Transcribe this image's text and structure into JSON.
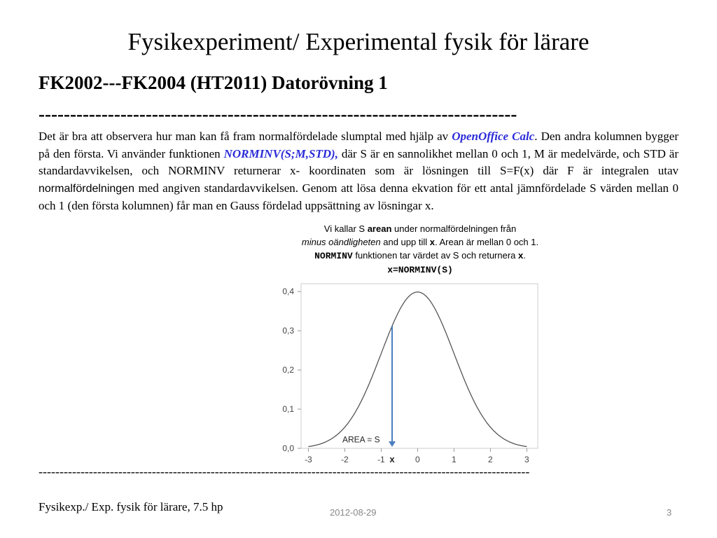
{
  "slide": {
    "title": "Fysikexperiment/ Experimental fysik för lärare",
    "heading": "FK2002---FK2004 (HT2011) Datorövning 1",
    "rule_top": "----------------------------------------------------------------------------",
    "rule_bottom": "---------------------------------------------------------------------------------------------------------------------"
  },
  "body": {
    "p1": "Det är bra att observera hur man kan få fram normalfördelade slumptal med hjälp av ",
    "app_name": "OpenOffice Calc",
    "p2": ". Den andra kolumnen bygger på den första. Vi använder funktionen ",
    "function_name": "NORMINV(S;M,STD),",
    "p3": " där S är en sannolikhet mellan 0 och 1, M är medelvärde, och STD är standardavvikelsen, och NORMINV returnerar x- koordinaten som är lösningen till S=F(x) där F är integralen utav ",
    "term": "normalfördelningen",
    "p4": " med angiven standardavvikelsen. Genom att lösa denna ekvation för ett antal jämnfördelade S värden mellan 0 och 1 (den första kolumnen) får man en Gauss fördelad uppsättning av lösningar  x."
  },
  "caption": {
    "l1a": "Vi kallar S ",
    "l1b": "arean",
    "l1c": " under normalfördelningen från",
    "l2a": "minus oändligheten",
    "l2b": " and upp till ",
    "l2c": "x",
    "l2d": ". Arean är mellan 0 och 1.",
    "l3a": "NORMINV",
    "l3b": "  funktionen tar värdet av S och returnera ",
    "l3c": "x",
    "l3d": ".",
    "l4": "x=NORMINV(S)"
  },
  "chart_data": {
    "type": "line",
    "series": [
      {
        "function": "standard normal pdf",
        "mean": 0,
        "std": 1
      }
    ],
    "xlim": [
      -3.2,
      3.3
    ],
    "ylim": [
      0,
      0.42
    ],
    "x_ticks": [
      "-3",
      "-2",
      "-1",
      "0",
      "1",
      "2",
      "3"
    ],
    "y_ticks": [
      "0,0",
      "0,1",
      "0,2",
      "0,3",
      "0,4"
    ],
    "x_tick_values": [
      -3,
      -2,
      -1,
      0,
      1,
      2,
      3
    ],
    "y_tick_values": [
      0,
      0.1,
      0.2,
      0.3,
      0.4
    ],
    "marker_x": -0.7,
    "marker_label": "x",
    "annotation": "AREA = S",
    "annotation_x": -1.55,
    "annotation_y": 0.015,
    "curve_color": "#555555",
    "marker_color": "#4a7fc1",
    "grid": false
  },
  "footer": {
    "left": "Fysikexp./ Exp. fysik för  lärare, 7.5 hp",
    "date": "2012-08-29",
    "page": "3"
  }
}
